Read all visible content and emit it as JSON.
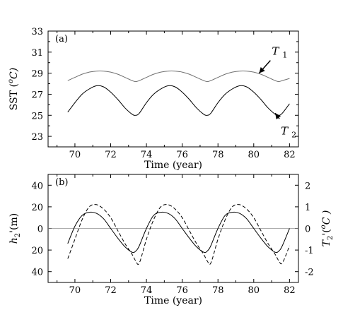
{
  "chart_data": [
    {
      "type": "line",
      "panel_label": "(a)",
      "xlabel": "Time (year)",
      "ylabel": "SST (°C)",
      "ylabel_parts": {
        "main": "SST (",
        "sup": "o",
        "unit": "C)"
      },
      "xlim": [
        68.5,
        82.5
      ],
      "ylim": [
        22,
        33
      ],
      "xticks": [
        70,
        72,
        74,
        76,
        78,
        80,
        82
      ],
      "yticks": [
        23,
        25,
        27,
        29,
        31,
        33
      ],
      "grid": false,
      "series": [
        {
          "name": "T1",
          "label_parts": {
            "main": "T",
            "sub": "1"
          },
          "color": "#707070",
          "style": "solid",
          "x": [
            69.6,
            70.0,
            70.4,
            70.8,
            71.2,
            71.6,
            72.0,
            72.4,
            72.8,
            73.2,
            73.4,
            73.6,
            74.0,
            74.4,
            74.8,
            75.2,
            75.6,
            76.0,
            76.4,
            76.8,
            77.2,
            77.4,
            77.6,
            78.0,
            78.4,
            78.8,
            79.2,
            79.6,
            80.0,
            80.4,
            80.8,
            81.2,
            81.4,
            81.6,
            82.0
          ],
          "y": [
            28.3,
            28.6,
            28.9,
            29.1,
            29.2,
            29.2,
            29.1,
            28.9,
            28.6,
            28.3,
            28.2,
            28.3,
            28.6,
            28.9,
            29.1,
            29.2,
            29.2,
            29.1,
            28.9,
            28.6,
            28.3,
            28.2,
            28.3,
            28.6,
            28.9,
            29.1,
            29.2,
            29.2,
            29.1,
            28.9,
            28.6,
            28.3,
            28.2,
            28.3,
            28.5
          ]
        },
        {
          "name": "T2",
          "label_parts": {
            "main": "T",
            "sub": "2"
          },
          "color": "#000000",
          "style": "solid",
          "x": [
            69.6,
            70.0,
            70.4,
            70.8,
            71.2,
            71.6,
            72.0,
            72.4,
            72.8,
            73.2,
            73.4,
            73.6,
            74.0,
            74.4,
            74.8,
            75.2,
            75.6,
            76.0,
            76.4,
            76.8,
            77.2,
            77.4,
            77.6,
            78.0,
            78.4,
            78.8,
            79.2,
            79.6,
            80.0,
            80.4,
            80.8,
            81.2,
            81.4,
            81.6,
            82.0
          ],
          "y": [
            25.3,
            26.2,
            27.0,
            27.5,
            27.8,
            27.7,
            27.2,
            26.5,
            25.7,
            25.1,
            25.0,
            25.2,
            26.2,
            27.0,
            27.5,
            27.8,
            27.7,
            27.2,
            26.5,
            25.7,
            25.1,
            25.0,
            25.2,
            26.2,
            27.0,
            27.5,
            27.8,
            27.7,
            27.2,
            26.5,
            25.7,
            25.1,
            25.0,
            25.2,
            26.1
          ]
        }
      ],
      "annotations": [
        {
          "label_parts": {
            "main": "T",
            "sub": "1"
          },
          "target": [
            80.3,
            29.0
          ]
        },
        {
          "label_parts": {
            "main": "T",
            "sub": "2"
          },
          "target": [
            81.2,
            25.2
          ]
        }
      ]
    },
    {
      "type": "line",
      "panel_label": "(b)",
      "xlabel": "Time (year)",
      "ylabel": "h2'(m)",
      "ylabel_parts": {
        "main": "h",
        "sub": "2",
        "rest": "'(m)"
      },
      "y2label": "T2'(°C)",
      "y2label_parts": {
        "main": "T",
        "sub": "2",
        "rest": "'(",
        "sup": "o",
        "unit": "C )"
      },
      "xlim": [
        68.5,
        82.5
      ],
      "ylim": [
        -50,
        50
      ],
      "y2lim": [
        -2.5,
        2.5
      ],
      "xticks": [
        70,
        72,
        74,
        76,
        78,
        80,
        82
      ],
      "yticks": [
        -40,
        -20,
        0,
        20,
        40
      ],
      "ytick_labels": [
        "40",
        "20",
        "0",
        "20",
        "40"
      ],
      "y2ticks": [
        -2,
        -1,
        0,
        1,
        2
      ],
      "y2tick_labels": [
        "-2",
        "-1",
        "0",
        "1",
        "2"
      ],
      "grid": false,
      "zero_line": {
        "y": 0,
        "color": "#909090"
      },
      "series": [
        {
          "name": "h2'",
          "axis": "left",
          "color": "#000000",
          "style": "solid",
          "x": [
            69.6,
            70.0,
            70.4,
            70.8,
            71.2,
            71.6,
            72.0,
            72.4,
            72.8,
            73.2,
            73.4,
            73.6,
            74.0,
            74.4,
            74.8,
            75.2,
            75.6,
            76.0,
            76.4,
            76.8,
            77.2,
            77.4,
            77.6,
            78.0,
            78.4,
            78.8,
            79.2,
            79.6,
            80.0,
            80.4,
            80.8,
            81.2,
            81.4,
            81.6,
            82.0
          ],
          "y": [
            -14,
            2,
            12,
            15,
            14,
            9,
            0,
            -9,
            -17,
            -22,
            -21,
            -16,
            0,
            12,
            15,
            14,
            9,
            0,
            -9,
            -17,
            -22,
            -21,
            -16,
            0,
            12,
            15,
            14,
            9,
            0,
            -9,
            -17,
            -22,
            -21,
            -16,
            0
          ]
        },
        {
          "name": "T2'",
          "axis": "right",
          "color": "#000000",
          "style": "dashed",
          "x": [
            69.6,
            70.0,
            70.4,
            70.8,
            71.2,
            71.6,
            72.0,
            72.4,
            72.8,
            73.2,
            73.4,
            73.6,
            74.0,
            74.4,
            74.8,
            75.2,
            75.6,
            76.0,
            76.4,
            76.8,
            77.2,
            77.4,
            77.6,
            78.0,
            78.4,
            78.8,
            79.2,
            79.6,
            80.0,
            80.4,
            80.8,
            81.2,
            81.4,
            81.6,
            82.0
          ],
          "y": [
            -1.4,
            -0.5,
            0.4,
            1.0,
            1.1,
            0.9,
            0.5,
            -0.1,
            -0.7,
            -1.2,
            -1.5,
            -1.6,
            -0.5,
            0.4,
            1.0,
            1.1,
            0.9,
            0.5,
            -0.1,
            -0.7,
            -1.2,
            -1.5,
            -1.6,
            -0.5,
            0.4,
            1.0,
            1.1,
            0.9,
            0.5,
            -0.1,
            -0.7,
            -1.2,
            -1.5,
            -1.6,
            -0.8
          ]
        }
      ]
    }
  ]
}
